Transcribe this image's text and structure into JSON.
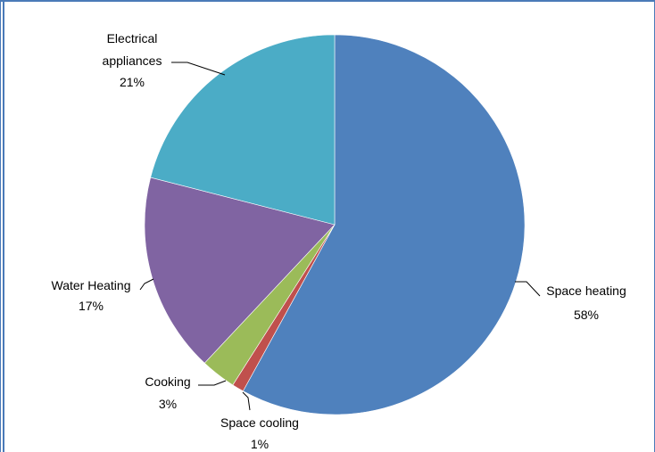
{
  "chart_data": {
    "type": "pie",
    "start_angle_deg": 0,
    "direction": "clockwise",
    "slices": [
      {
        "label": "Space heating",
        "value_label": "58%",
        "value": 58,
        "color": "#4f81bd"
      },
      {
        "label": "Space cooling",
        "value_label": "1%",
        "value": 1,
        "color": "#c0504d"
      },
      {
        "label": "Cooking",
        "value_label": "3%",
        "value": 3,
        "color": "#9bbb59"
      },
      {
        "label": "Water Heating",
        "value_label": "17%",
        "value": 17,
        "color": "#8064a2"
      },
      {
        "label": "Electrical appliances",
        "label_lines": [
          "Electrical",
          "appliances"
        ],
        "value_label": "21%",
        "value": 21,
        "color": "#4bacc6"
      }
    ],
    "legend": "none"
  }
}
